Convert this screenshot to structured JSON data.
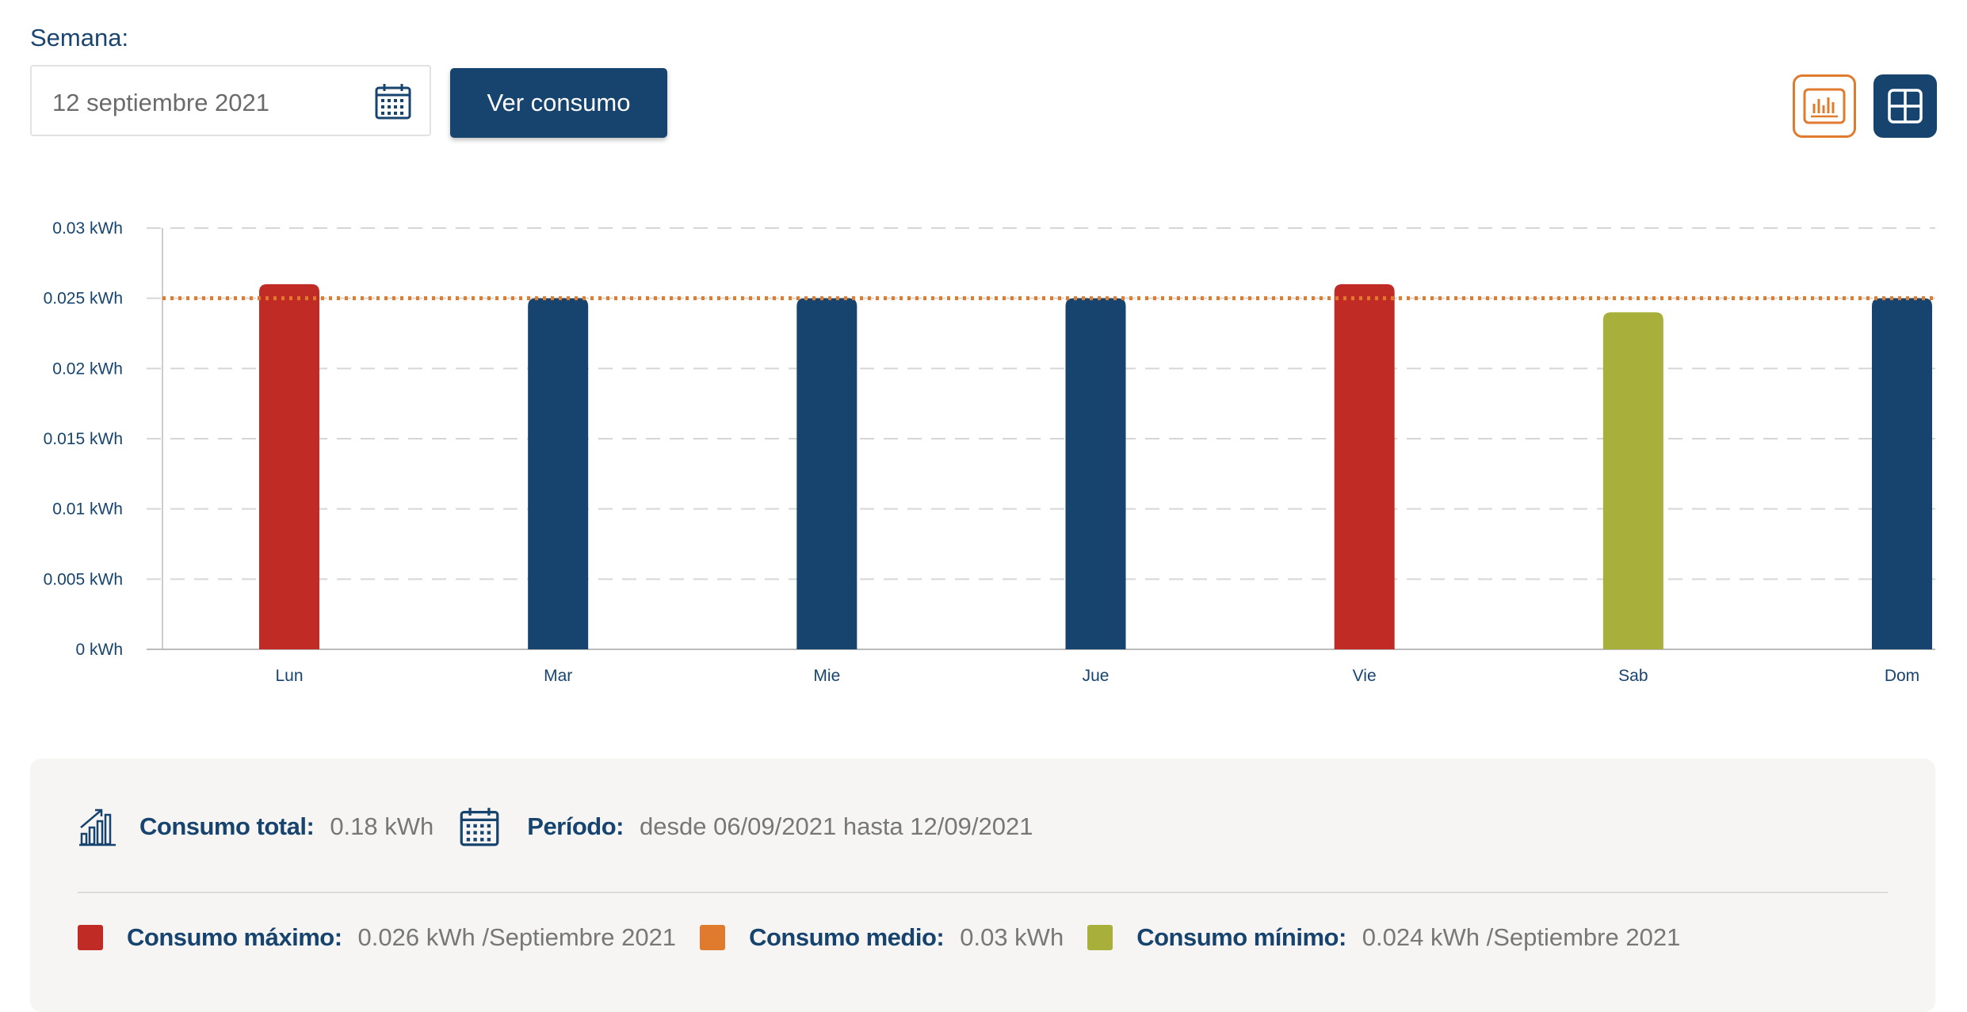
{
  "week": {
    "label": "Semana:",
    "date_value": "12 septiembre 2021",
    "button_label": "Ver consumo"
  },
  "colors": {
    "primary": "#17446e",
    "max": "#c12b25",
    "avg": "#e07b2e",
    "min": "#a8af3a",
    "grid": "#d6d6d6"
  },
  "chart_data": {
    "type": "bar",
    "categories": [
      "Lun",
      "Mar",
      "Mie",
      "Jue",
      "Vie",
      "Sab",
      "Dom"
    ],
    "values": [
      0.026,
      0.025,
      0.025,
      0.025,
      0.026,
      0.024,
      0.025
    ],
    "bar_kind": [
      "max",
      "normal",
      "normal",
      "normal",
      "max",
      "min",
      "normal"
    ],
    "ylim": [
      0,
      0.03
    ],
    "yticks": [
      0,
      0.005,
      0.01,
      0.015,
      0.02,
      0.025,
      0.03
    ],
    "ytick_labels": [
      "0 kWh",
      "0.005 kWh",
      "0.01 kWh",
      "0.015 kWh",
      "0.02 kWh",
      "0.025 kWh",
      "0.03 kWh"
    ],
    "average_line": 0.025,
    "grid": true
  },
  "summary": {
    "total_label": "Consumo total:",
    "total_value": "0.18 kWh",
    "period_label": "Período:",
    "period_value": "desde 06/09/2021 hasta 12/09/2021",
    "max_label": "Consumo máximo:",
    "max_value": "0.026 kWh /Septiembre 2021",
    "avg_label": "Consumo medio:",
    "avg_value": "0.03 kWh",
    "min_label": "Consumo mínimo:",
    "min_value": "0.024 kWh /Septiembre 2021"
  }
}
